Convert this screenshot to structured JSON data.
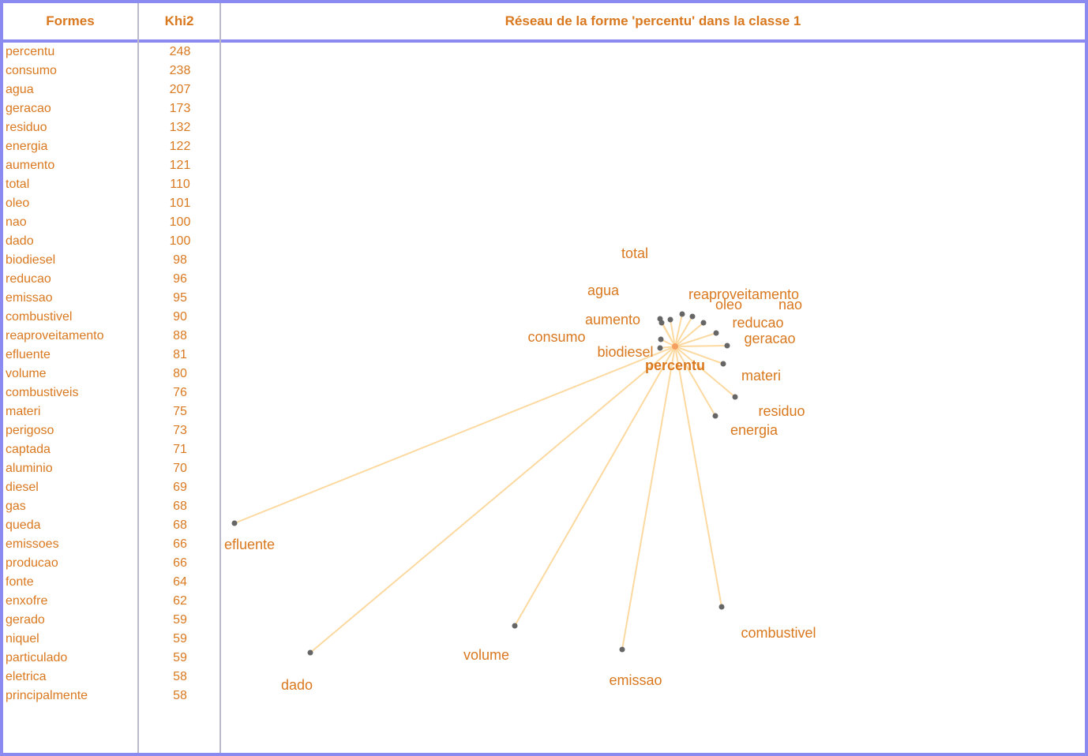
{
  "headers": {
    "forms": "Formes",
    "khi2": "Khi2",
    "title": "Réseau de la forme 'percentu' dans la classe 1"
  },
  "rows": [
    {
      "word": "percentu",
      "khi2": "248"
    },
    {
      "word": "consumo",
      "khi2": "238"
    },
    {
      "word": "agua",
      "khi2": "207"
    },
    {
      "word": "geracao",
      "khi2": "173"
    },
    {
      "word": "residuo",
      "khi2": "132"
    },
    {
      "word": "energia",
      "khi2": "122"
    },
    {
      "word": "aumento",
      "khi2": "121"
    },
    {
      "word": "total",
      "khi2": "110"
    },
    {
      "word": "oleo",
      "khi2": "101"
    },
    {
      "word": "nao",
      "khi2": "100"
    },
    {
      "word": "dado",
      "khi2": "100"
    },
    {
      "word": "biodiesel",
      "khi2": "98"
    },
    {
      "word": "reducao",
      "khi2": "96"
    },
    {
      "word": "emissao",
      "khi2": "95"
    },
    {
      "word": "combustivel",
      "khi2": "90"
    },
    {
      "word": "reaproveitamento",
      "khi2": "88"
    },
    {
      "word": "efluente",
      "khi2": "81"
    },
    {
      "word": "volume",
      "khi2": "80"
    },
    {
      "word": "combustiveis",
      "khi2": "76"
    },
    {
      "word": "materi",
      "khi2": "75"
    },
    {
      "word": "perigoso",
      "khi2": "73"
    },
    {
      "word": "captada",
      "khi2": "71"
    },
    {
      "word": "aluminio",
      "khi2": "70"
    },
    {
      "word": "diesel",
      "khi2": "69"
    },
    {
      "word": "gas",
      "khi2": "68"
    },
    {
      "word": "queda",
      "khi2": "68"
    },
    {
      "word": "emissoes",
      "khi2": "66"
    },
    {
      "word": "producao",
      "khi2": "66"
    },
    {
      "word": "fonte",
      "khi2": "64"
    },
    {
      "word": "enxofre",
      "khi2": "62"
    },
    {
      "word": "gerado",
      "khi2": "59"
    },
    {
      "word": "niquel",
      "khi2": "59"
    },
    {
      "word": "particulado",
      "khi2": "59"
    },
    {
      "word": "eletrica",
      "khi2": "58"
    },
    {
      "word": "principalmente",
      "khi2": "58"
    }
  ],
  "network": {
    "center": "percentu",
    "nodes": [
      "total",
      "agua",
      "reaproveitamento",
      "oleo",
      "nao",
      "aumento",
      "reducao",
      "consumo",
      "geracao",
      "biodiesel",
      "materi",
      "residuo",
      "energia",
      "efluente",
      "dado",
      "volume",
      "emissao",
      "combustivel"
    ]
  },
  "colors": {
    "text": "#d9781f",
    "edge": "#fcd9a0",
    "node": "#666666",
    "border": "#8a8af0",
    "column_rule": "#b9b9c9"
  }
}
